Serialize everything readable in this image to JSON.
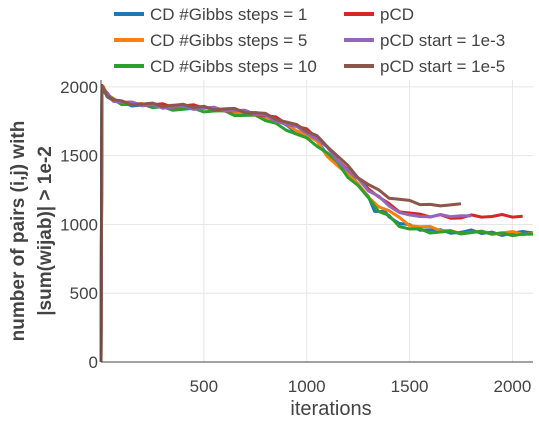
{
  "chart_data": {
    "type": "line",
    "title": "",
    "xlabel": "iterations",
    "ylabel_lines": [
      "number of pairs (i,j) with",
      "|sum(wijab)| > 1e-2"
    ],
    "xlim": [
      0,
      2100
    ],
    "ylim": [
      0,
      2050
    ],
    "x_ticks": [
      500,
      1000,
      1500,
      2000
    ],
    "y_ticks": [
      0,
      500,
      1000,
      1500,
      2000
    ],
    "grid": true,
    "legend_position": "top",
    "series": [
      {
        "name": "CD #Gibbs steps = 1",
        "color": "#1f77b4",
        "x": [
          0,
          5,
          10,
          30,
          60,
          100,
          150,
          200,
          250,
          300,
          350,
          400,
          450,
          500,
          550,
          600,
          650,
          700,
          750,
          800,
          850,
          900,
          950,
          1000,
          1050,
          1100,
          1150,
          1200,
          1250,
          1300,
          1330,
          1350,
          1380,
          1400,
          1450,
          1500,
          1550,
          1600,
          1650,
          1700,
          1750,
          1800,
          1850,
          1900,
          1950,
          2000,
          2050,
          2100
        ],
        "y": [
          0,
          2000,
          1980,
          1940,
          1900,
          1880,
          1870,
          1865,
          1860,
          1860,
          1858,
          1855,
          1850,
          1850,
          1845,
          1840,
          1830,
          1820,
          1810,
          1790,
          1760,
          1720,
          1680,
          1650,
          1600,
          1520,
          1450,
          1380,
          1300,
          1200,
          1080,
          1100,
          1090,
          1070,
          1010,
          990,
          970,
          960,
          950,
          945,
          940,
          945,
          940,
          938,
          935,
          940,
          940,
          938
        ]
      },
      {
        "name": "CD #Gibbs steps = 5",
        "color": "#ff7f0e",
        "x": [
          0,
          5,
          10,
          30,
          60,
          100,
          150,
          200,
          250,
          300,
          350,
          400,
          450,
          500,
          550,
          600,
          650,
          700,
          750,
          800,
          850,
          900,
          950,
          1000,
          1050,
          1100,
          1150,
          1200,
          1250,
          1300,
          1350,
          1400,
          1450,
          1500,
          1550,
          1600,
          1650,
          1700,
          1750,
          1800,
          1850,
          1900,
          1950,
          2000,
          2050,
          2100
        ],
        "y": [
          0,
          2010,
          1990,
          1950,
          1910,
          1890,
          1880,
          1870,
          1865,
          1860,
          1855,
          1850,
          1845,
          1840,
          1835,
          1830,
          1825,
          1810,
          1800,
          1780,
          1750,
          1720,
          1690,
          1650,
          1590,
          1500,
          1420,
          1380,
          1300,
          1190,
          1140,
          1100,
          1040,
          1000,
          980,
          970,
          960,
          950,
          948,
          945,
          942,
          940,
          938,
          937,
          936,
          935
        ]
      },
      {
        "name": "CD #Gibbs steps = 10",
        "color": "#2ca02c",
        "x": [
          0,
          5,
          10,
          30,
          60,
          100,
          150,
          200,
          250,
          300,
          350,
          400,
          450,
          500,
          550,
          600,
          650,
          700,
          750,
          800,
          850,
          900,
          950,
          1000,
          1050,
          1100,
          1150,
          1200,
          1250,
          1300,
          1350,
          1400,
          1450,
          1500,
          1550,
          1600,
          1650,
          1700,
          1750,
          1800,
          1850,
          1900,
          1950,
          2000,
          2050,
          2100
        ],
        "y": [
          0,
          2000,
          1980,
          1940,
          1900,
          1880,
          1870,
          1860,
          1855,
          1850,
          1845,
          1840,
          1835,
          1830,
          1825,
          1815,
          1800,
          1790,
          1780,
          1760,
          1730,
          1700,
          1660,
          1620,
          1580,
          1520,
          1440,
          1350,
          1280,
          1180,
          1100,
          1060,
          1000,
          970,
          960,
          950,
          945,
          940,
          940,
          938,
          936,
          935,
          934,
          933,
          932,
          930
        ]
      },
      {
        "name": "pCD",
        "color": "#d62728",
        "x": [
          0,
          5,
          10,
          30,
          60,
          100,
          150,
          200,
          250,
          300,
          350,
          400,
          450,
          500,
          550,
          600,
          650,
          700,
          750,
          800,
          850,
          900,
          950,
          1000,
          1050,
          1100,
          1150,
          1200,
          1250,
          1300,
          1350,
          1400,
          1450,
          1500,
          1550,
          1600,
          1650,
          1700,
          1750,
          1800,
          1850,
          1900,
          1950,
          2000,
          2050
        ],
        "y": [
          0,
          2010,
          1990,
          1950,
          1910,
          1890,
          1880,
          1875,
          1870,
          1865,
          1860,
          1858,
          1855,
          1850,
          1845,
          1840,
          1830,
          1820,
          1810,
          1790,
          1770,
          1740,
          1710,
          1680,
          1630,
          1560,
          1480,
          1400,
          1330,
          1270,
          1200,
          1140,
          1100,
          1080,
          1060,
          1060,
          1065,
          1060,
          1050,
          1060,
          1065,
          1058,
          1060,
          1062,
          1060
        ]
      },
      {
        "name": "pCD start = 1e-3",
        "color": "#9467bd",
        "x": [
          0,
          5,
          10,
          30,
          60,
          100,
          150,
          200,
          250,
          300,
          350,
          400,
          450,
          500,
          550,
          600,
          650,
          700,
          750,
          800,
          850,
          900,
          950,
          1000,
          1050,
          1100,
          1150,
          1200,
          1250,
          1300,
          1350,
          1400,
          1450,
          1500,
          1550,
          1600,
          1650,
          1700,
          1750,
          1800
        ],
        "y": [
          0,
          2000,
          1985,
          1945,
          1905,
          1885,
          1875,
          1870,
          1865,
          1860,
          1856,
          1852,
          1848,
          1845,
          1840,
          1835,
          1825,
          1815,
          1805,
          1790,
          1765,
          1735,
          1705,
          1675,
          1620,
          1550,
          1470,
          1390,
          1320,
          1250,
          1200,
          1150,
          1090,
          1060,
          1070,
          1055,
          1060,
          1065,
          1060,
          1062
        ]
      },
      {
        "name": "pCD start = 1e-5",
        "color": "#8c564b",
        "x": [
          0,
          5,
          10,
          30,
          60,
          100,
          150,
          200,
          250,
          300,
          350,
          400,
          450,
          500,
          550,
          600,
          650,
          700,
          750,
          800,
          850,
          900,
          950,
          1000,
          1050,
          1100,
          1150,
          1200,
          1250,
          1300,
          1350,
          1400,
          1450,
          1500,
          1550,
          1600,
          1650,
          1700,
          1750
        ],
        "y": [
          0,
          2005,
          1990,
          1950,
          1910,
          1890,
          1880,
          1875,
          1870,
          1866,
          1862,
          1858,
          1855,
          1852,
          1848,
          1842,
          1834,
          1824,
          1812,
          1795,
          1772,
          1742,
          1712,
          1682,
          1640,
          1580,
          1500,
          1420,
          1350,
          1290,
          1240,
          1200,
          1180,
          1160,
          1150,
          1140,
          1150,
          1145,
          1150
        ]
      }
    ]
  }
}
